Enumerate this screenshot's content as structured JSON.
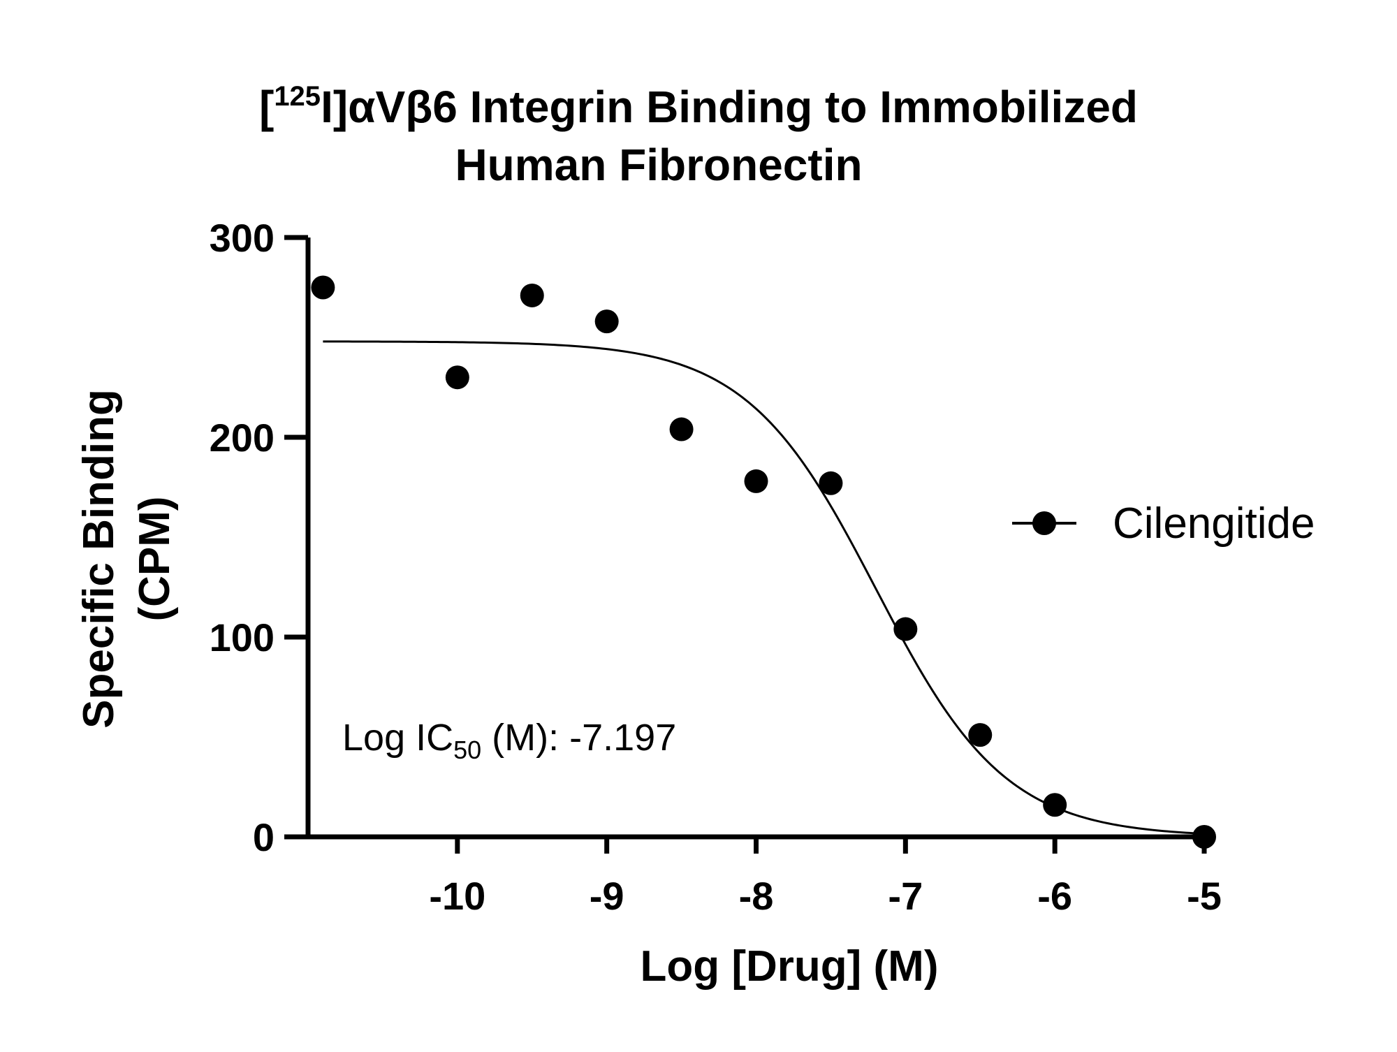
{
  "chart_data": {
    "type": "scatter",
    "title_prefix": "[",
    "title_sup": "125",
    "title_line1_rest": "I]αVβ6 Integrin Binding to Immobilized",
    "title_line2": "Human Fibronectin",
    "xlabel": "Log [Drug] (M)",
    "ylabel_line1": "Specific Binding",
    "ylabel_line2": "(CPM)",
    "xlim": [
      -11.0,
      -5.0
    ],
    "ylim": [
      0,
      300
    ],
    "xticks": [
      -10,
      -9,
      -8,
      -7,
      -6,
      -5
    ],
    "xtick_labels": [
      "-10",
      "-9",
      "-8",
      "-7",
      "-6",
      "-5"
    ],
    "yticks": [
      0,
      100,
      200,
      300
    ],
    "ytick_labels": [
      "0",
      "100",
      "200",
      "300"
    ],
    "grid": false,
    "legend_position": "right",
    "series": [
      {
        "name": "Cilengitide",
        "color": "#000000",
        "marker": "circle",
        "x": [
          -10.9,
          -10.0,
          -9.5,
          -9.0,
          -8.5,
          -8.0,
          -7.5,
          -7.0,
          -6.5,
          -6.0,
          -5.0
        ],
        "y": [
          275,
          230,
          271,
          258,
          204,
          178,
          177,
          104,
          51,
          16,
          0
        ]
      }
    ],
    "fit": {
      "model": "sigmoidal dose-response",
      "top": 248,
      "bottom": 0,
      "log_ic50": -7.197,
      "hill_slope": -1.0,
      "x_range": [
        -10.9,
        -5.0
      ]
    },
    "annotation": {
      "prefix": "Log IC",
      "sub": "50",
      "suffix": " (M):  -7.197"
    }
  }
}
